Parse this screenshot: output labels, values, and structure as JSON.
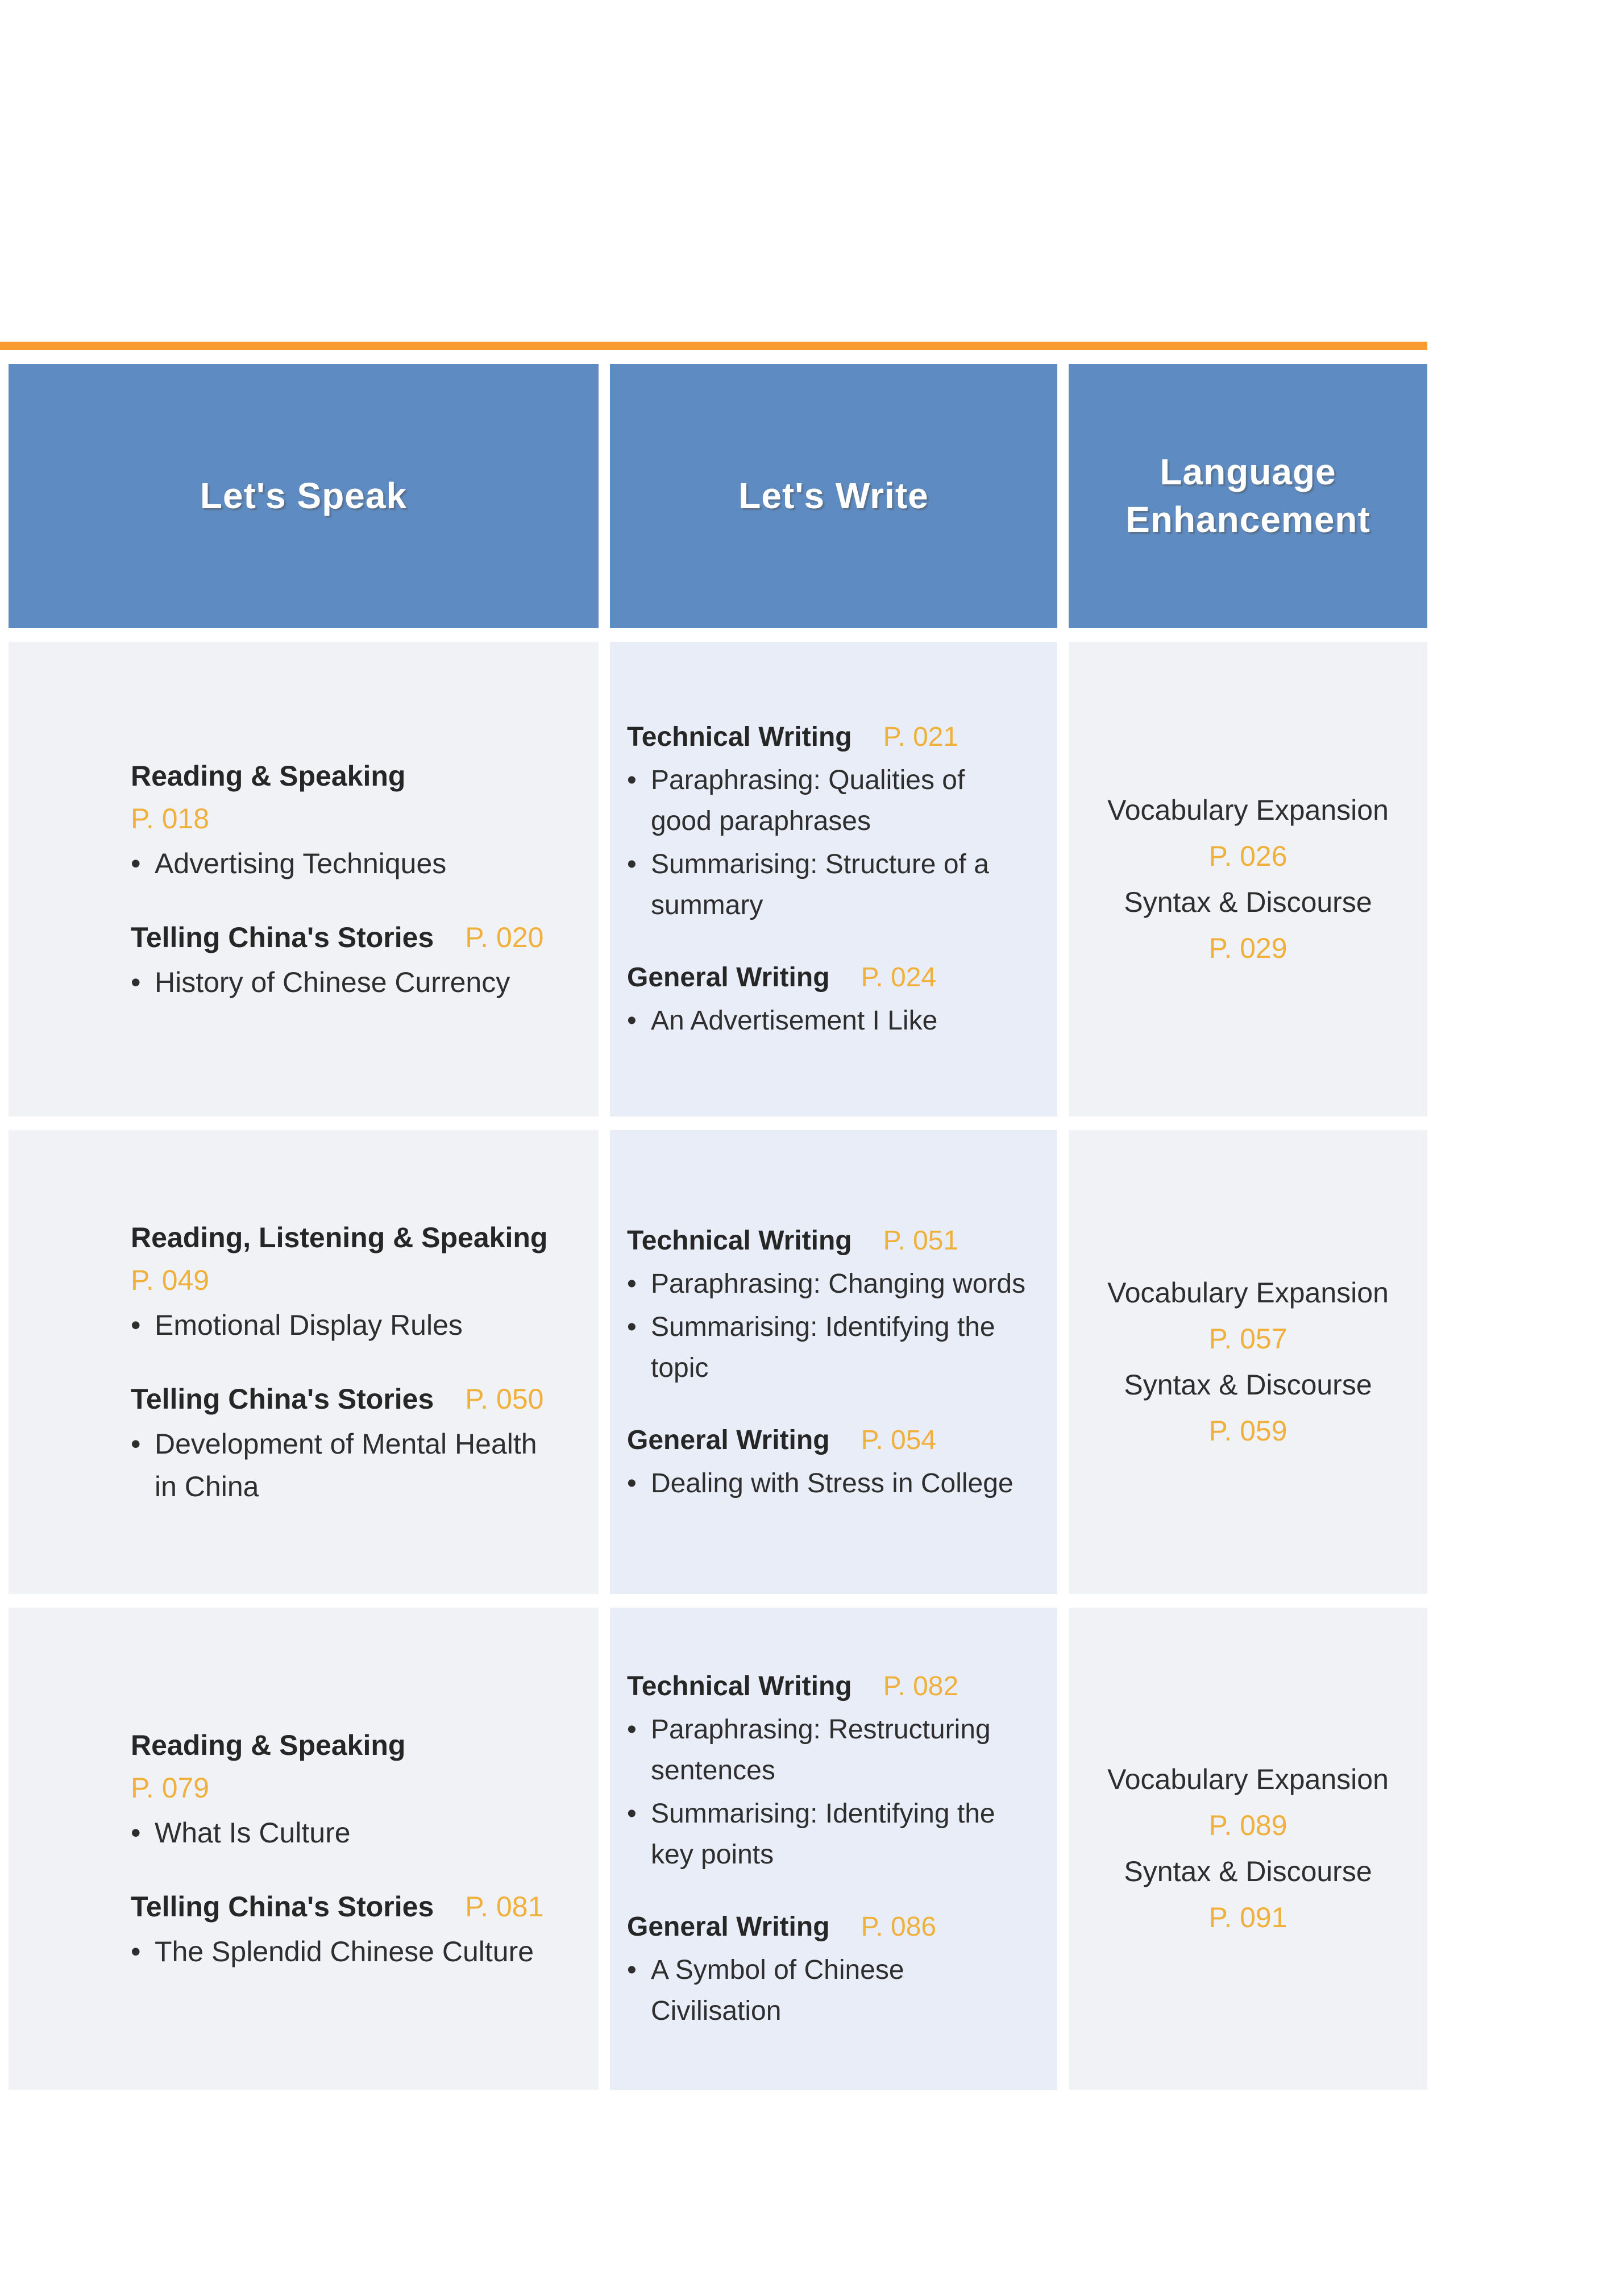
{
  "colors": {
    "orange_rule": "#f89b31",
    "header_blue": "#5e8bc1",
    "amber_page_number": "#f0b03c",
    "speak_cell_bg": "#f1f2f5",
    "write_cell_bg": "#e9edf7",
    "lang_cell_bg": "#f1f2f5",
    "text": "#2e2e2e"
  },
  "table": {
    "headers": [
      {
        "label": "Let's Speak"
      },
      {
        "label": "Let's Write"
      },
      {
        "label": "Language Enhancement"
      }
    ],
    "rows": [
      {
        "speak": {
          "groups": [
            {
              "title": "Reading & Speaking",
              "page": "P. 018",
              "bullets": [
                "Advertising Techniques"
              ]
            },
            {
              "title": "Telling China's Stories",
              "page": "P. 020",
              "bullets": [
                "History of Chinese Currency"
              ]
            }
          ]
        },
        "write": {
          "groups": [
            {
              "title": "Technical Writing",
              "page": "P. 021",
              "bullets": [
                "Paraphrasing: Qualities of good paraphrases",
                "Summarising: Structure of a summary"
              ]
            },
            {
              "title": "General Writing",
              "page": "P. 024",
              "bullets": [
                "An Advertisement I Like"
              ]
            }
          ]
        },
        "language": {
          "lines": [
            {
              "text": "Vocabulary Expansion",
              "kind": "label"
            },
            {
              "text": "P. 026",
              "kind": "page"
            },
            {
              "text": "Syntax & Discourse",
              "kind": "label"
            },
            {
              "text": "P. 029",
              "kind": "page"
            }
          ]
        }
      },
      {
        "speak": {
          "groups": [
            {
              "title": "Reading, Listening & Speaking",
              "page": "P. 049",
              "bullets": [
                "Emotional Display Rules"
              ]
            },
            {
              "title": "Telling China's Stories",
              "page": "P. 050",
              "bullets": [
                "Development of Mental Health in China"
              ]
            }
          ]
        },
        "write": {
          "groups": [
            {
              "title": "Technical Writing",
              "page": "P. 051",
              "bullets": [
                "Paraphrasing: Changing words",
                "Summarising: Identifying the topic"
              ]
            },
            {
              "title": "General Writing",
              "page": "P. 054",
              "bullets": [
                "Dealing with Stress in College"
              ]
            }
          ]
        },
        "language": {
          "lines": [
            {
              "text": "Vocabulary Expansion",
              "kind": "label"
            },
            {
              "text": "P. 057",
              "kind": "page"
            },
            {
              "text": "Syntax & Discourse",
              "kind": "label"
            },
            {
              "text": "P. 059",
              "kind": "page"
            }
          ]
        }
      },
      {
        "speak": {
          "groups": [
            {
              "title": "Reading & Speaking",
              "page": "P. 079",
              "bullets": [
                "What Is Culture"
              ]
            },
            {
              "title": "Telling China's Stories",
              "page": "P. 081",
              "bullets": [
                "The Splendid Chinese Culture"
              ]
            }
          ]
        },
        "write": {
          "groups": [
            {
              "title": "Technical Writing",
              "page": "P. 082",
              "bullets": [
                "Paraphrasing: Restructuring sentences",
                "Summarising: Identifying the key points"
              ]
            },
            {
              "title": "General Writing",
              "page": "P. 086",
              "bullets": [
                "A Symbol of Chinese Civilisation"
              ]
            }
          ]
        },
        "language": {
          "lines": [
            {
              "text": "Vocabulary Expansion",
              "kind": "label"
            },
            {
              "text": "P. 089",
              "kind": "page"
            },
            {
              "text": "Syntax & Discourse",
              "kind": "label"
            },
            {
              "text": "P. 091",
              "kind": "page"
            }
          ]
        }
      }
    ]
  }
}
